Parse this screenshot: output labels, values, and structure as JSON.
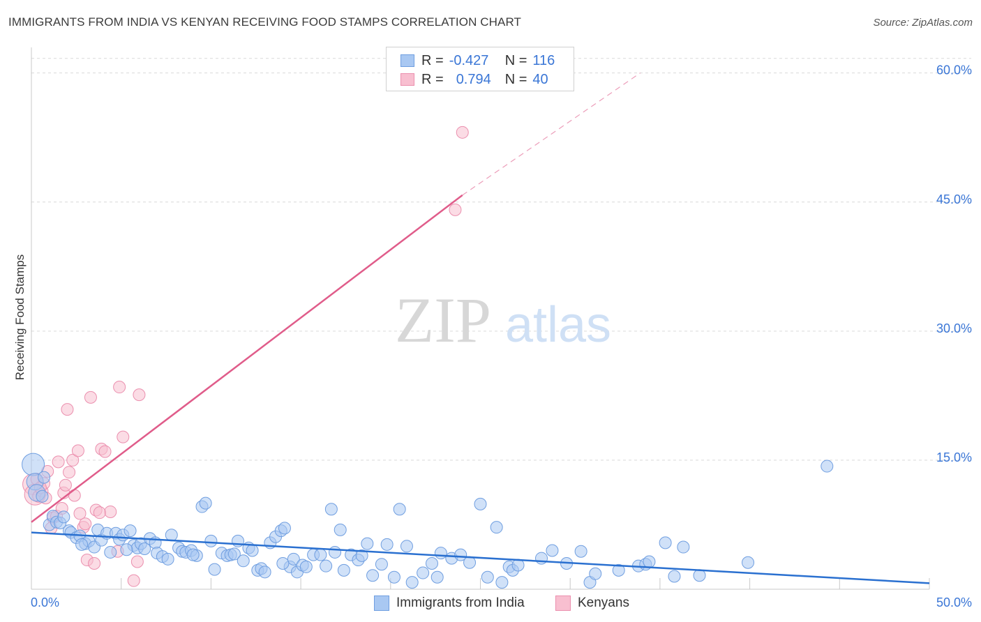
{
  "title": "IMMIGRANTS FROM INDIA VS KENYAN RECEIVING FOOD STAMPS CORRELATION CHART",
  "source": "Source: ZipAtlas.com",
  "watermark": {
    "zip": "ZIP",
    "atlas": "atlas"
  },
  "legend": {
    "rows": [
      {
        "r_label": "R =",
        "r_value": "-0.427",
        "n_label": "N =",
        "n_value": "116"
      },
      {
        "r_label": "R =",
        "r_value": "0.794",
        "n_label": "N =",
        "n_value": "40"
      }
    ]
  },
  "bottom_legend": {
    "india": "Immigrants from India",
    "kenyans": "Kenyans"
  },
  "colors": {
    "india_fill": "#a9c8f2",
    "india_stroke": "#6f9ee0",
    "india_line": "#2a70d0",
    "kenya_fill": "#f8bfd0",
    "kenya_stroke": "#eb8fae",
    "kenya_line": "#e05c8a",
    "tick_text": "#3a76d6",
    "grid": "#d9d9d9"
  },
  "chart_data": {
    "type": "scatter",
    "title": "IMMIGRANTS FROM INDIA VS KENYAN RECEIVING FOOD STAMPS CORRELATION CHART",
    "xlabel": "",
    "ylabel": "Receiving Food Stamps",
    "xlim": [
      0,
      50
    ],
    "ylim": [
      0,
      62
    ],
    "x_tick_labels": [
      "0.0%",
      "50.0%"
    ],
    "y_ticks": [
      15,
      30,
      45,
      60
    ],
    "y_tick_labels": [
      "15.0%",
      "30.0%",
      "45.0%",
      "60.0%"
    ],
    "grid": true,
    "series": [
      {
        "name": "Immigrants from India",
        "r": -0.427,
        "n": 116,
        "trend": {
          "x0": 0,
          "y0": 6.6,
          "x1": 50,
          "y1": 0.7
        },
        "points": [
          [
            0.1,
            14.5
          ],
          [
            0.2,
            12.5
          ],
          [
            0.3,
            11.2
          ],
          [
            0.6,
            10.8
          ],
          [
            0.7,
            13.0
          ],
          [
            1.0,
            7.5
          ],
          [
            1.2,
            8.5
          ],
          [
            1.4,
            7.8
          ],
          [
            1.6,
            7.7
          ],
          [
            1.8,
            8.4
          ],
          [
            2.1,
            6.8
          ],
          [
            2.2,
            6.6
          ],
          [
            2.5,
            6.0
          ],
          [
            2.7,
            6.2
          ],
          [
            3.0,
            5.3
          ],
          [
            3.2,
            5.6
          ],
          [
            3.5,
            4.9
          ],
          [
            3.7,
            6.9
          ],
          [
            3.9,
            5.7
          ],
          [
            4.2,
            6.5
          ],
          [
            4.4,
            4.3
          ],
          [
            4.7,
            6.5
          ],
          [
            4.9,
            5.8
          ],
          [
            5.1,
            6.3
          ],
          [
            5.5,
            6.8
          ],
          [
            5.7,
            5.1
          ],
          [
            5.9,
            4.8
          ],
          [
            6.1,
            5.3
          ],
          [
            6.3,
            4.7
          ],
          [
            6.6,
            5.9
          ],
          [
            6.9,
            5.4
          ],
          [
            7.0,
            4.2
          ],
          [
            7.3,
            3.8
          ],
          [
            7.6,
            3.5
          ],
          [
            7.8,
            6.3
          ],
          [
            8.2,
            4.8
          ],
          [
            8.4,
            4.4
          ],
          [
            8.6,
            4.3
          ],
          [
            8.9,
            4.5
          ],
          [
            9.2,
            3.9
          ],
          [
            9.5,
            9.6
          ],
          [
            9.7,
            10.0
          ],
          [
            10.0,
            5.6
          ],
          [
            10.2,
            2.3
          ],
          [
            10.6,
            4.2
          ],
          [
            10.9,
            3.9
          ],
          [
            11.1,
            4.0
          ],
          [
            11.3,
            4.1
          ],
          [
            11.5,
            5.6
          ],
          [
            11.8,
            3.3
          ],
          [
            12.1,
            4.8
          ],
          [
            12.3,
            4.5
          ],
          [
            12.6,
            2.2
          ],
          [
            12.8,
            2.4
          ],
          [
            13.0,
            2.0
          ],
          [
            13.3,
            5.4
          ],
          [
            13.6,
            6.1
          ],
          [
            13.9,
            6.8
          ],
          [
            14.1,
            7.1
          ],
          [
            14.4,
            2.6
          ],
          [
            14.6,
            3.5
          ],
          [
            14.8,
            2.0
          ],
          [
            15.1,
            2.8
          ],
          [
            15.3,
            2.6
          ],
          [
            15.7,
            4.0
          ],
          [
            16.1,
            4.0
          ],
          [
            16.4,
            2.7
          ],
          [
            16.7,
            9.3
          ],
          [
            16.9,
            4.3
          ],
          [
            17.2,
            6.9
          ],
          [
            17.4,
            2.2
          ],
          [
            17.8,
            4.0
          ],
          [
            18.2,
            3.4
          ],
          [
            18.4,
            3.9
          ],
          [
            18.7,
            5.3
          ],
          [
            19.0,
            1.6
          ],
          [
            19.5,
            2.9
          ],
          [
            19.8,
            5.2
          ],
          [
            20.2,
            1.4
          ],
          [
            20.5,
            9.3
          ],
          [
            20.9,
            5.0
          ],
          [
            21.2,
            0.8
          ],
          [
            21.8,
            1.9
          ],
          [
            22.3,
            3.0
          ],
          [
            22.6,
            1.4
          ],
          [
            22.8,
            4.2
          ],
          [
            23.4,
            3.6
          ],
          [
            23.9,
            4.0
          ],
          [
            24.4,
            3.1
          ],
          [
            25.0,
            9.9
          ],
          [
            25.4,
            1.4
          ],
          [
            25.9,
            7.2
          ],
          [
            26.2,
            0.8
          ],
          [
            26.6,
            2.6
          ],
          [
            26.8,
            2.2
          ],
          [
            27.1,
            2.8
          ],
          [
            28.4,
            3.6
          ],
          [
            29.0,
            4.5
          ],
          [
            29.8,
            3.0
          ],
          [
            30.6,
            4.4
          ],
          [
            31.1,
            0.8
          ],
          [
            31.4,
            1.8
          ],
          [
            32.7,
            2.2
          ],
          [
            33.8,
            2.7
          ],
          [
            34.2,
            2.9
          ],
          [
            34.4,
            3.2
          ],
          [
            35.3,
            5.4
          ],
          [
            35.8,
            1.5
          ],
          [
            36.3,
            4.9
          ],
          [
            37.2,
            1.6
          ],
          [
            39.9,
            3.1
          ],
          [
            44.3,
            14.3
          ],
          [
            14.0,
            3.0
          ],
          [
            9.0,
            4.0
          ],
          [
            5.3,
            4.6
          ],
          [
            2.8,
            5.2
          ]
        ]
      },
      {
        "name": "Kenyans",
        "r": 0.794,
        "n": 40,
        "trend": {
          "x0": 0,
          "y0": 7.8,
          "x1": 24.0,
          "y1": 45.8,
          "dash_x1": 33.9,
          "dash_y1": 60.0
        },
        "points": [
          [
            0.1,
            12.2
          ],
          [
            0.2,
            11.0
          ],
          [
            0.3,
            12.8
          ],
          [
            0.4,
            10.8
          ],
          [
            0.6,
            11.4
          ],
          [
            0.7,
            12.3
          ],
          [
            0.8,
            10.6
          ],
          [
            0.9,
            13.7
          ],
          [
            1.2,
            8.3
          ],
          [
            1.4,
            8.5
          ],
          [
            1.5,
            14.8
          ],
          [
            1.7,
            9.4
          ],
          [
            1.8,
            11.2
          ],
          [
            1.9,
            12.1
          ],
          [
            2.0,
            20.9
          ],
          [
            2.1,
            13.6
          ],
          [
            2.3,
            15.0
          ],
          [
            2.4,
            10.9
          ],
          [
            2.6,
            16.1
          ],
          [
            2.7,
            8.8
          ],
          [
            2.9,
            7.2
          ],
          [
            3.0,
            7.6
          ],
          [
            3.1,
            3.4
          ],
          [
            3.3,
            22.3
          ],
          [
            3.5,
            3.0
          ],
          [
            3.6,
            9.2
          ],
          [
            3.9,
            16.3
          ],
          [
            4.1,
            16.0
          ],
          [
            4.4,
            9.0
          ],
          [
            4.8,
            4.4
          ],
          [
            4.9,
            23.5
          ],
          [
            5.1,
            17.7
          ],
          [
            5.7,
            1.0
          ],
          [
            5.9,
            3.2
          ],
          [
            6.0,
            22.6
          ],
          [
            23.6,
            44.1
          ],
          [
            24.0,
            53.1
          ],
          [
            1.1,
            7.1
          ],
          [
            0.5,
            11.8
          ],
          [
            3.8,
            8.9
          ]
        ]
      }
    ]
  }
}
